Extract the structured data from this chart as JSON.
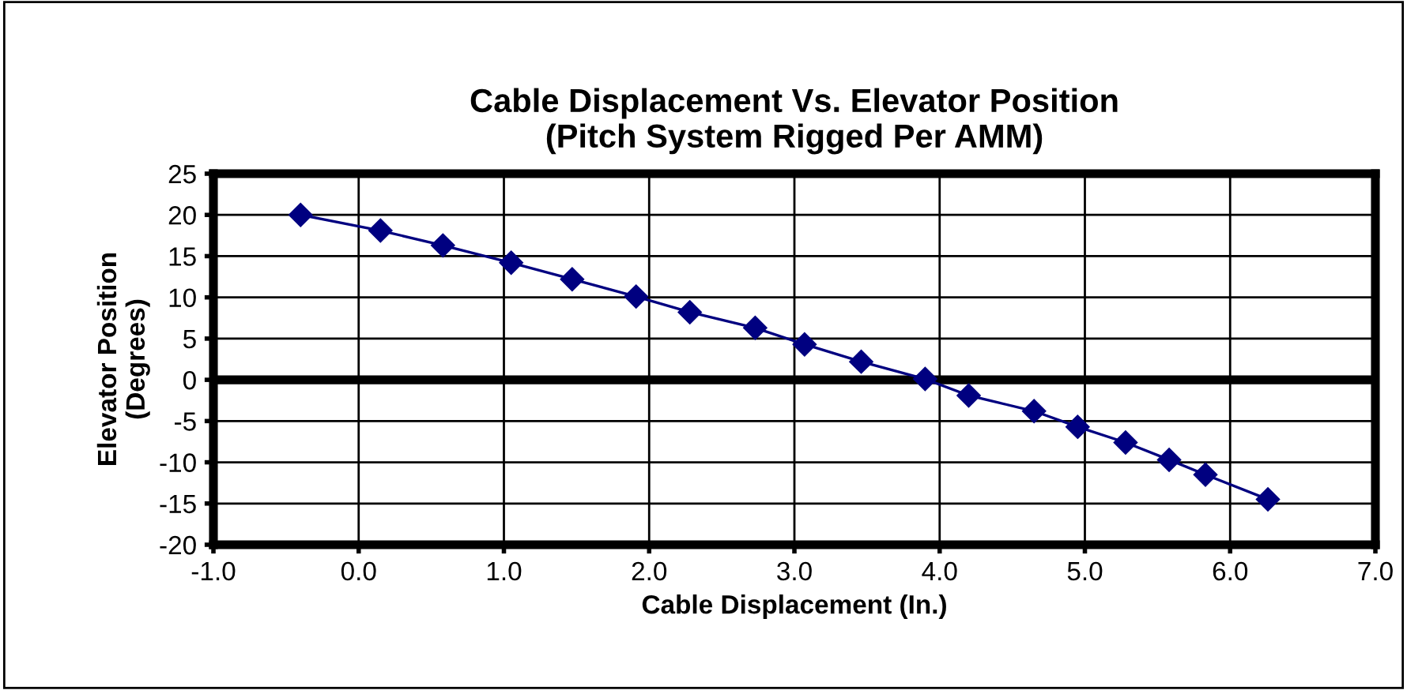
{
  "chart_data": {
    "type": "line",
    "title": "Cable Displacement Vs. Elevator Position\n(Pitch System Rigged Per AMM)",
    "xlabel": "Cable Displacement (In.)",
    "ylabel": "Elevator Position\n(Degrees)",
    "series": [
      {
        "color": "#000080",
        "x": [
          -0.4,
          0.15,
          0.58,
          1.05,
          1.47,
          1.91,
          2.28,
          2.73,
          3.07,
          3.46,
          3.9,
          4.2,
          4.65,
          4.95,
          5.28,
          5.58,
          5.83,
          6.26
        ],
        "values": [
          20,
          18.1,
          16.3,
          14.2,
          12.2,
          10.1,
          8.2,
          6.3,
          4.3,
          2.2,
          0.1,
          -1.9,
          -3.8,
          -5.7,
          -7.6,
          -9.7,
          -11.5,
          -14.5
        ]
      }
    ],
    "xlim": [
      -1,
      7
    ],
    "xticks": [
      {
        "value": -1,
        "label": "-1.0"
      },
      {
        "value": 0,
        "label": "0.0"
      },
      {
        "value": 1,
        "label": "1.0"
      },
      {
        "value": 2,
        "label": "2.0"
      },
      {
        "value": 3,
        "label": "3.0"
      },
      {
        "value": 4,
        "label": "4.0"
      },
      {
        "value": 5,
        "label": "5.0"
      },
      {
        "value": 6,
        "label": "6.0"
      },
      {
        "value": 7,
        "label": "7.0"
      }
    ],
    "ylim": [
      -20,
      25
    ],
    "yticks": [
      -20,
      -15,
      -10,
      -5,
      0,
      5,
      10,
      15,
      20,
      25
    ],
    "ref_lines": [
      {
        "axis": "y",
        "value": 0,
        "color": "#000000"
      }
    ],
    "grid": true,
    "marker": "diamond",
    "line_style": "solid",
    "legend": false
  }
}
